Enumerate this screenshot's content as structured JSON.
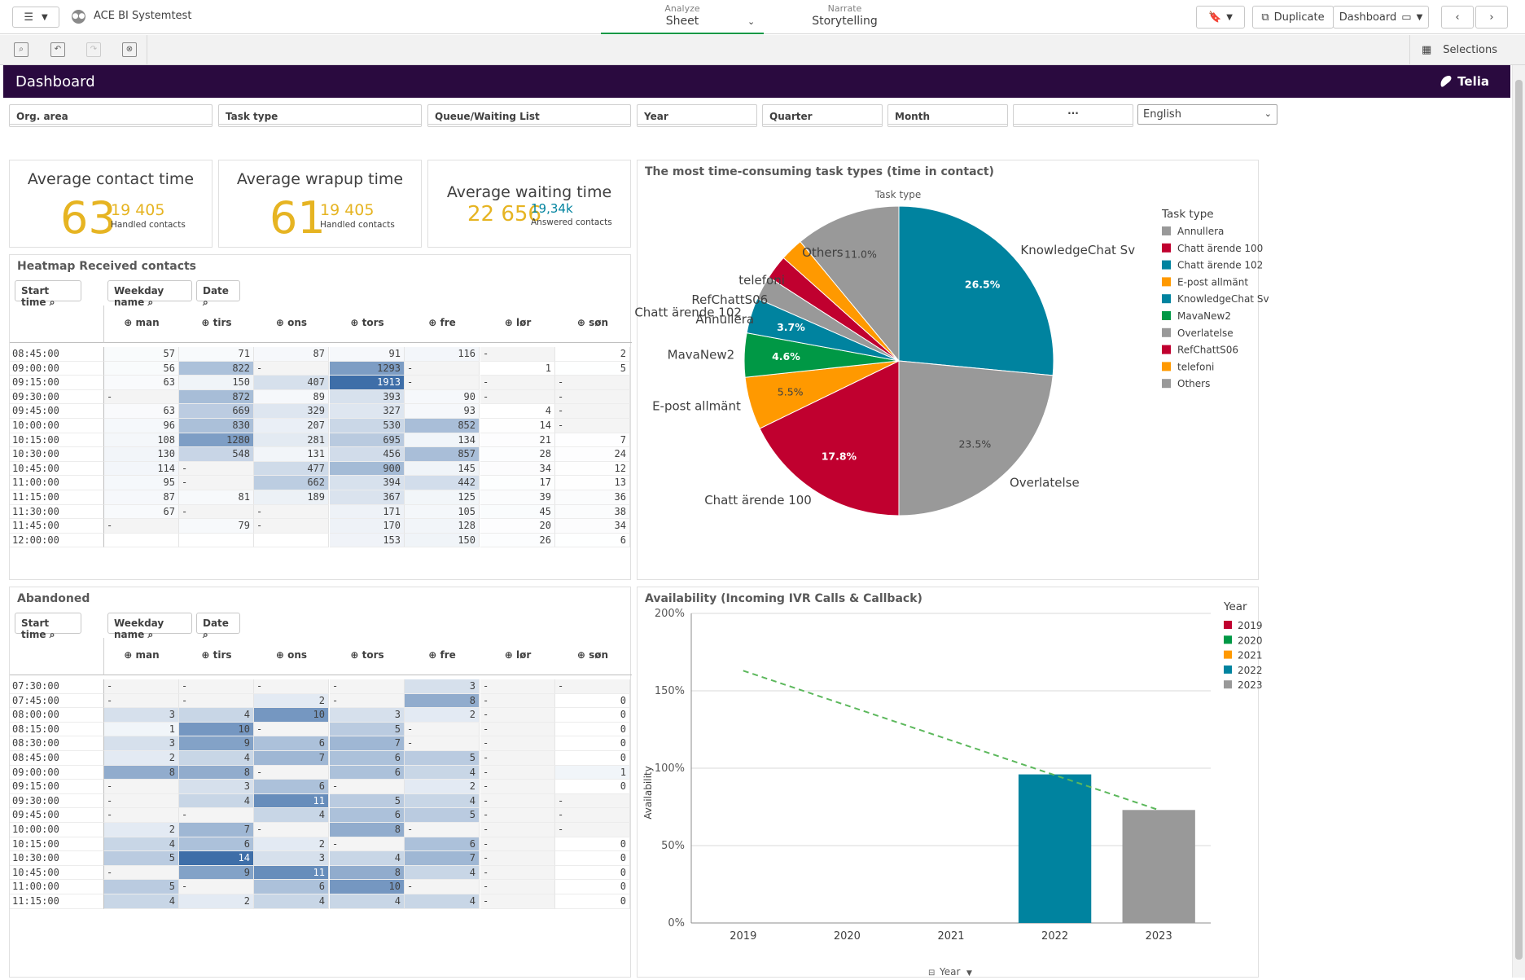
{
  "app": {
    "title": "ACE BI Systemtest"
  },
  "modes": {
    "analyze": {
      "small": "Analyze",
      "main": "Sheet"
    },
    "narrate": {
      "small": "Narrate",
      "main": "Storytelling"
    }
  },
  "toolbar": {
    "duplicate": "Duplicate",
    "sheet": "Dashboard",
    "selections": "Selections"
  },
  "header": {
    "title": "Dashboard",
    "logo": "Telia"
  },
  "filters": [
    {
      "label": "Org. area"
    },
    {
      "label": "Task type"
    },
    {
      "label": "Queue/Waiting List"
    },
    {
      "label": "Year"
    },
    {
      "label": "Quarter"
    },
    {
      "label": "Month"
    },
    {
      "label": "···"
    }
  ],
  "language": {
    "value": "English"
  },
  "kpis": [
    {
      "title": "Average contact time",
      "value": "63",
      "sub": "19 405",
      "caption": "Handled contacts"
    },
    {
      "title": "Average wrapup time",
      "value": "61",
      "sub": "19 405",
      "caption": "Handled contacts"
    },
    {
      "title": "Average waiting time",
      "value": "22 656",
      "sub": "19,34k",
      "caption": "Answered contacts"
    }
  ],
  "heatmap_received": {
    "title": "Heatmap Received contacts",
    "search": {
      "start": "Start time",
      "weekday": "Weekday name",
      "date": "Date"
    },
    "columns": [
      "man",
      "tirs",
      "ons",
      "tors",
      "fre",
      "lør",
      "søn"
    ],
    "rows": [
      {
        "time": "08:45:00",
        "v": [
          "57",
          "71",
          "87",
          "91",
          "116",
          "-",
          "2"
        ]
      },
      {
        "time": "09:00:00",
        "v": [
          "56",
          "822",
          "-",
          "1293",
          "-",
          "1",
          "5"
        ]
      },
      {
        "time": "09:15:00",
        "v": [
          "63",
          "150",
          "407",
          "1913",
          "-",
          "-",
          "-"
        ]
      },
      {
        "time": "09:30:00",
        "v": [
          "-",
          "872",
          "89",
          "393",
          "90",
          "-",
          "-"
        ]
      },
      {
        "time": "09:45:00",
        "v": [
          "63",
          "669",
          "329",
          "327",
          "93",
          "4",
          "-"
        ]
      },
      {
        "time": "10:00:00",
        "v": [
          "96",
          "830",
          "207",
          "530",
          "852",
          "14",
          "-"
        ]
      },
      {
        "time": "10:15:00",
        "v": [
          "108",
          "1280",
          "281",
          "695",
          "134",
          "21",
          "7"
        ]
      },
      {
        "time": "10:30:00",
        "v": [
          "130",
          "548",
          "131",
          "456",
          "857",
          "28",
          "24"
        ]
      },
      {
        "time": "10:45:00",
        "v": [
          "114",
          "-",
          "477",
          "900",
          "145",
          "34",
          "12"
        ]
      },
      {
        "time": "11:00:00",
        "v": [
          "95",
          "-",
          "662",
          "394",
          "442",
          "17",
          "13"
        ]
      },
      {
        "time": "11:15:00",
        "v": [
          "87",
          "81",
          "189",
          "367",
          "125",
          "39",
          "36"
        ]
      },
      {
        "time": "11:30:00",
        "v": [
          "67",
          "-",
          "-",
          "171",
          "105",
          "45",
          "38"
        ]
      },
      {
        "time": "11:45:00",
        "v": [
          "-",
          "79",
          "-",
          "170",
          "128",
          "20",
          "34"
        ]
      },
      {
        "time": "12:00:00",
        "v": [
          "",
          "",
          "",
          "153",
          "150",
          "26",
          "6"
        ]
      }
    ]
  },
  "heatmap_abandoned": {
    "title": "Abandoned",
    "search": {
      "start": "Start time",
      "weekday": "Weekday name",
      "date": "Date"
    },
    "columns": [
      "man",
      "tirs",
      "ons",
      "tors",
      "fre",
      "lør",
      "søn"
    ],
    "rows": [
      {
        "time": "07:30:00",
        "v": [
          "-",
          "-",
          "-",
          "-",
          "3",
          "-",
          "-"
        ]
      },
      {
        "time": "07:45:00",
        "v": [
          "-",
          "-",
          "2",
          "-",
          "8",
          "-",
          "0"
        ]
      },
      {
        "time": "08:00:00",
        "v": [
          "3",
          "4",
          "10",
          "3",
          "2",
          "-",
          "0"
        ]
      },
      {
        "time": "08:15:00",
        "v": [
          "1",
          "10",
          "-",
          "5",
          "-",
          "-",
          "0"
        ]
      },
      {
        "time": "08:30:00",
        "v": [
          "3",
          "9",
          "6",
          "7",
          "-",
          "-",
          "0"
        ]
      },
      {
        "time": "08:45:00",
        "v": [
          "2",
          "4",
          "7",
          "6",
          "5",
          "-",
          "0"
        ]
      },
      {
        "time": "09:00:00",
        "v": [
          "8",
          "8",
          "-",
          "6",
          "4",
          "-",
          "1"
        ]
      },
      {
        "time": "09:15:00",
        "v": [
          "-",
          "3",
          "6",
          "-",
          "2",
          "-",
          "0"
        ]
      },
      {
        "time": "09:30:00",
        "v": [
          "-",
          "4",
          "11",
          "5",
          "4",
          "-",
          "-"
        ]
      },
      {
        "time": "09:45:00",
        "v": [
          "-",
          "-",
          "4",
          "6",
          "5",
          "-",
          "-"
        ]
      },
      {
        "time": "10:00:00",
        "v": [
          "2",
          "7",
          "-",
          "8",
          "-",
          "-",
          "-"
        ]
      },
      {
        "time": "10:15:00",
        "v": [
          "4",
          "6",
          "2",
          "-",
          "6",
          "-",
          "0"
        ]
      },
      {
        "time": "10:30:00",
        "v": [
          "5",
          "14",
          "3",
          "4",
          "7",
          "-",
          "0"
        ]
      },
      {
        "time": "10:45:00",
        "v": [
          "-",
          "9",
          "11",
          "8",
          "4",
          "-",
          "0"
        ]
      },
      {
        "time": "11:00:00",
        "v": [
          "5",
          "-",
          "6",
          "10",
          "-",
          "-",
          "0"
        ]
      },
      {
        "time": "11:15:00",
        "v": [
          "4",
          "2",
          "4",
          "4",
          "4",
          "-",
          "0"
        ]
      }
    ]
  },
  "colors": {
    "accent_green": "#009845",
    "header_purple": "#2a0a3f",
    "kpi_yellow": "#e6b422",
    "heat_dark": "#3e6ea8"
  },
  "chart_data": [
    {
      "type": "pie",
      "title": "The most time-consuming task types (time in contact)",
      "subtitle": "Task type",
      "legend_title": "Task type",
      "legend_position": "right",
      "legend": [
        {
          "name": "Annullera",
          "color": "#999999"
        },
        {
          "name": "Chatt ärende 100",
          "color": "#c0002f"
        },
        {
          "name": "Chatt ärende 102",
          "color": "#00839f"
        },
        {
          "name": "E-post allmänt",
          "color": "#ff9900"
        },
        {
          "name": "KnowledgeChat Sv",
          "color": "#00839f"
        },
        {
          "name": "MavaNew2",
          "color": "#009845"
        },
        {
          "name": "Overlatelse",
          "color": "#999999"
        },
        {
          "name": "RefChattS06",
          "color": "#c0002f"
        },
        {
          "name": "telefoni",
          "color": "#ff9900"
        },
        {
          "name": "Others",
          "color": "#999999"
        }
      ],
      "slices": [
        {
          "label": "KnowledgeChat Sv",
          "value": 26.5,
          "display": "26.5%",
          "color": "#00839f"
        },
        {
          "label": "Overlatelse",
          "value": 23.5,
          "display": "23.5%",
          "color": "#999999"
        },
        {
          "label": "Chatt ärende 100",
          "value": 17.8,
          "display": "17.8%",
          "color": "#c0002f"
        },
        {
          "label": "E-post allmänt",
          "value": 5.5,
          "display": "5.5%",
          "color": "#ff9900"
        },
        {
          "label": "MavaNew2",
          "value": 4.6,
          "display": "4.6%",
          "color": "#009845"
        },
        {
          "label": "Chatt ärende 102",
          "value": 3.7,
          "display": "3.7%",
          "color": "#00839f"
        },
        {
          "label": "Annullera",
          "value": 2.5,
          "display": "",
          "color": "#999999"
        },
        {
          "label": "RefChattS06",
          "value": 2.5,
          "display": "",
          "color": "#c0002f"
        },
        {
          "label": "telefoni",
          "value": 2.4,
          "display": "",
          "color": "#ff9900"
        },
        {
          "label": "Others",
          "value": 11.0,
          "display": "11.0%",
          "color": "#999999"
        }
      ]
    },
    {
      "type": "bar",
      "title": "Availability (Incoming IVR Calls & Callback)",
      "ylabel": "Availability",
      "xlabel": "Year",
      "ylim": [
        0,
        200
      ],
      "yticks": [
        "0%",
        "50%",
        "100%",
        "150%",
        "200%"
      ],
      "categories": [
        "2019",
        "2020",
        "2021",
        "2022",
        "2023"
      ],
      "values": [
        null,
        null,
        null,
        96,
        73
      ],
      "bar_colors": [
        "#c0002f",
        "#009845",
        "#ff9900",
        "#00839f",
        "#999999"
      ],
      "trend_line": {
        "from": [
          "2019",
          163
        ],
        "to": [
          "2023",
          73
        ],
        "color": "#5cb85c"
      },
      "legend_title": "Year",
      "legend_position": "right",
      "legend": [
        {
          "name": "2019",
          "color": "#c0002f"
        },
        {
          "name": "2020",
          "color": "#009845"
        },
        {
          "name": "2021",
          "color": "#ff9900"
        },
        {
          "name": "2022",
          "color": "#00839f"
        },
        {
          "name": "2023",
          "color": "#999999"
        }
      ]
    }
  ]
}
